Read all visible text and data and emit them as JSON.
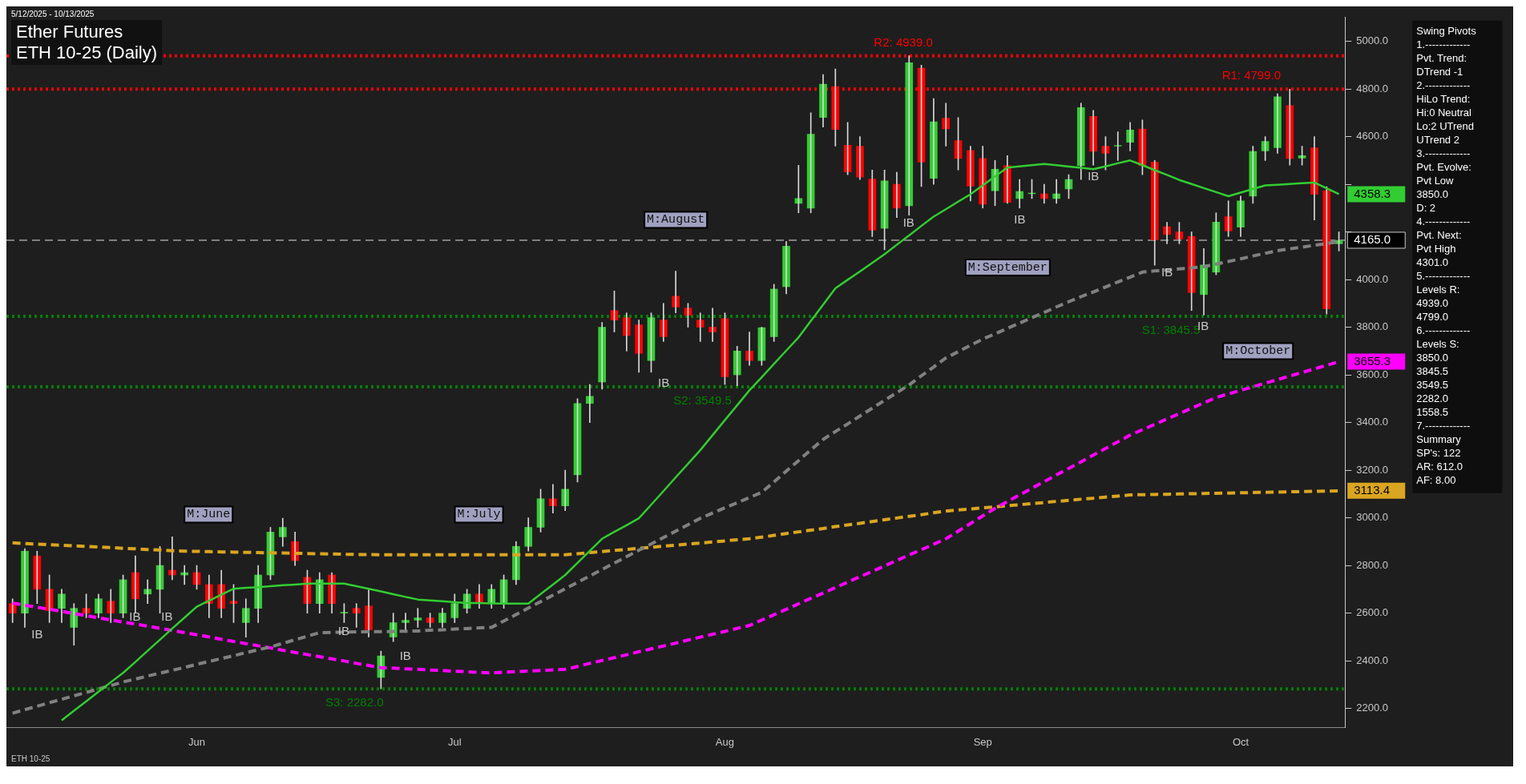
{
  "chart_data": {
    "type": "candlestick",
    "title": "Ether Futures",
    "subtitle": "ETH 10-25 (Daily)",
    "categories": [
      null,
      null,
      null,
      null,
      null,
      null,
      null,
      null,
      null,
      null,
      null,
      null,
      null,
      null,
      null,
      "Jun",
      null,
      null,
      null,
      null,
      null,
      null,
      null,
      null,
      null,
      null,
      null,
      null,
      null,
      null,
      null,
      null,
      null,
      null,
      null,
      null,
      "Jul",
      null,
      null,
      null,
      null,
      null,
      null,
      null,
      null,
      null,
      null,
      null,
      null,
      null,
      null,
      null,
      null,
      null,
      null,
      null,
      null,
      null,
      "Aug",
      null,
      null,
      null,
      null,
      null,
      null,
      null,
      null,
      null,
      null,
      null,
      null,
      null,
      null,
      null,
      null,
      null,
      null,
      null,
      null,
      "Sep",
      null,
      null,
      null,
      null,
      null,
      null,
      null,
      null,
      null,
      null,
      null,
      null,
      null,
      null,
      null,
      null,
      null,
      null,
      null,
      null,
      "Oct",
      null,
      null,
      null,
      null,
      null,
      null,
      null,
      null
    ],
    "ohlc": [
      [
        2640,
        2660,
        2560,
        2600
      ],
      [
        2600,
        2871,
        2540,
        2860
      ],
      [
        2840,
        2860,
        2640,
        2700
      ],
      [
        2700,
        2760,
        2560,
        2610
      ],
      [
        2620,
        2700,
        2560,
        2680
      ],
      [
        2540,
        2640,
        2465,
        2620
      ],
      [
        2620,
        2680,
        2580,
        2600
      ],
      [
        2600,
        2680,
        2580,
        2660
      ],
      [
        2650,
        2700,
        2560,
        2600
      ],
      [
        2600,
        2760,
        2580,
        2740
      ],
      [
        2770,
        2840,
        2600,
        2660
      ],
      [
        2680,
        2740,
        2640,
        2700
      ],
      [
        2700,
        2880,
        2600,
        2800
      ],
      [
        2780,
        2920,
        2740,
        2760
      ],
      [
        2760,
        2800,
        2720,
        2770
      ],
      [
        2770,
        2800,
        2700,
        2720
      ],
      [
        2720,
        2760,
        2580,
        2640
      ],
      [
        2720,
        2780,
        2580,
        2620
      ],
      [
        2650,
        2720,
        2560,
        2640
      ],
      [
        2560,
        2660,
        2499,
        2620
      ],
      [
        2620,
        2800,
        2560,
        2760
      ],
      [
        2760,
        2960,
        2740,
        2940
      ],
      [
        2920,
        2998,
        2880,
        2960
      ],
      [
        2900,
        2940,
        2800,
        2820
      ],
      [
        2750,
        2780,
        2600,
        2640
      ],
      [
        2640,
        2770,
        2600,
        2740
      ],
      [
        2760,
        2770,
        2600,
        2640
      ],
      [
        2600,
        2640,
        2560,
        2600
      ],
      [
        2620,
        2640,
        2540,
        2600
      ],
      [
        2630,
        2700,
        2500,
        2530
      ],
      [
        2330,
        2440,
        2282,
        2420
      ],
      [
        2500,
        2600,
        2480,
        2560
      ],
      [
        2560,
        2600,
        2520,
        2570
      ],
      [
        2570,
        2620,
        2540,
        2580
      ],
      [
        2580,
        2600,
        2540,
        2560
      ],
      [
        2560,
        2620,
        2540,
        2600
      ],
      [
        2580,
        2680,
        2560,
        2640
      ],
      [
        2620,
        2700,
        2600,
        2680
      ],
      [
        2680,
        2720,
        2620,
        2640
      ],
      [
        2640,
        2720,
        2620,
        2700
      ],
      [
        2640,
        2760,
        2620,
        2740
      ],
      [
        2740,
        2900,
        2720,
        2880
      ],
      [
        2880,
        3000,
        2860,
        2960
      ],
      [
        2960,
        3120,
        2940,
        3080
      ],
      [
        3080,
        3140,
        3020,
        3050
      ],
      [
        3050,
        3200,
        3030,
        3120
      ],
      [
        3180,
        3500,
        3150,
        3480
      ],
      [
        3480,
        3560,
        3400,
        3510
      ],
      [
        3570,
        3820,
        3540,
        3800
      ],
      [
        3870,
        3952,
        3780,
        3830
      ],
      [
        3840,
        3860,
        3700,
        3765
      ],
      [
        3810,
        3830,
        3611,
        3690
      ],
      [
        3660,
        3860,
        3611,
        3840
      ],
      [
        3830,
        3900,
        3740,
        3760
      ],
      [
        3930,
        4035,
        3860,
        3885
      ],
      [
        3880,
        3900,
        3800,
        3850
      ],
      [
        3830,
        3860,
        3740,
        3800
      ],
      [
        3800,
        3880,
        3740,
        3780
      ],
      [
        3836,
        3860,
        3560,
        3592
      ],
      [
        3600,
        3720,
        3554,
        3700
      ],
      [
        3700,
        3780,
        3640,
        3660
      ],
      [
        3660,
        3800,
        3640,
        3798
      ],
      [
        3760,
        3980,
        3740,
        3960
      ],
      [
        3970,
        4160,
        3940,
        4140
      ],
      [
        4320,
        4480,
        4280,
        4340
      ],
      [
        4300,
        4700,
        4280,
        4610
      ],
      [
        4680,
        4860,
        4640,
        4820
      ],
      [
        4810,
        4884,
        4560,
        4630
      ],
      [
        4564,
        4660,
        4440,
        4452
      ],
      [
        4560,
        4600,
        4420,
        4430
      ],
      [
        4422,
        4460,
        4180,
        4207
      ],
      [
        4215,
        4460,
        4125,
        4414
      ],
      [
        4400,
        4450,
        4260,
        4300
      ],
      [
        4310,
        4939,
        4270,
        4910
      ],
      [
        4887,
        4900,
        4390,
        4493
      ],
      [
        4425,
        4760,
        4400,
        4662
      ],
      [
        4677,
        4740,
        4560,
        4632
      ],
      [
        4583,
        4680,
        4460,
        4508
      ],
      [
        4542,
        4560,
        4330,
        4392
      ],
      [
        4508,
        4560,
        4300,
        4316
      ],
      [
        4373,
        4500,
        4310,
        4463
      ],
      [
        4478,
        4520,
        4320,
        4324
      ],
      [
        4340,
        4420,
        4300,
        4370
      ],
      [
        4360,
        4420,
        4340,
        4360
      ],
      [
        4360,
        4400,
        4320,
        4340
      ],
      [
        4340,
        4420,
        4320,
        4360
      ],
      [
        4380,
        4440,
        4340,
        4420
      ],
      [
        4478,
        4740,
        4420,
        4722
      ],
      [
        4685,
        4710,
        4480,
        4538
      ],
      [
        4560,
        4600,
        4460,
        4530
      ],
      [
        4560,
        4620,
        4500,
        4560
      ],
      [
        4576,
        4660,
        4540,
        4628
      ],
      [
        4632,
        4670,
        4440,
        4478
      ],
      [
        4493,
        4500,
        4060,
        4166
      ],
      [
        4222,
        4240,
        4150,
        4189
      ],
      [
        4200,
        4240,
        4150,
        4170
      ],
      [
        4181,
        4200,
        3870,
        3945
      ],
      [
        3937,
        4130,
        3851,
        4061
      ],
      [
        4031,
        4280,
        4020,
        4241
      ],
      [
        4264,
        4330,
        4180,
        4204
      ],
      [
        4220,
        4350,
        4180,
        4330
      ],
      [
        4350,
        4560,
        4320,
        4538
      ],
      [
        4540,
        4600,
        4500,
        4580
      ],
      [
        4553,
        4780,
        4530,
        4767
      ],
      [
        4730,
        4799,
        4480,
        4508
      ],
      [
        4510,
        4560,
        4480,
        4520
      ],
      [
        4553,
        4600,
        4250,
        4358
      ],
      [
        4373,
        4390,
        3855,
        3877
      ],
      [
        4150,
        4200,
        4120,
        4165
      ]
    ],
    "series": [
      {
        "type": "line",
        "color": "#32cd32",
        "line_style": "solid",
        "values": [
          null,
          null,
          null,
          null,
          2150,
          2190,
          2230,
          2270,
          2310,
          2349,
          2395,
          2442,
          2488,
          2535,
          2581,
          2627,
          2652,
          2677,
          2702,
          2706,
          2709,
          2713,
          2717,
          2720,
          2724,
          2724,
          2724,
          2724,
          2713,
          2702,
          2691,
          2679,
          2668,
          2657,
          2653,
          2650,
          2646,
          2642,
          2642,
          2641,
          2640,
          2640,
          2640,
          2680,
          2720,
          2760,
          2811,
          2861,
          2912,
          2941,
          2969,
          2998,
          3055,
          3112,
          3170,
          3227,
          3284,
          3347,
          3410,
          3472,
          3535,
          3590,
          3646,
          3702,
          3757,
          3826,
          3894,
          3963,
          3999,
          4034,
          4070,
          4106,
          4146,
          4185,
          4225,
          4264,
          4295,
          4327,
          4358,
          4395,
          4433,
          4470,
          4475,
          4480,
          4485,
          4480,
          4474,
          4469,
          4463,
          4475,
          4488,
          4500,
          4480,
          4459,
          4439,
          4418,
          4401,
          4384,
          4367,
          4350,
          4365,
          4380,
          4395,
          4398,
          4401,
          4404,
          4407,
          4383,
          4358.3
        ],
        "value_labels": [
          null,
          null,
          null,
          null,
          null,
          null,
          null,
          null,
          null,
          null,
          null,
          null,
          null,
          null,
          null,
          null,
          null,
          null,
          null,
          null,
          null,
          null,
          null,
          null,
          null,
          null,
          null,
          null,
          null,
          null,
          null,
          null,
          null,
          null,
          null,
          null,
          null,
          null,
          null,
          null,
          null,
          null,
          null,
          null,
          null,
          null,
          null,
          null,
          null,
          null,
          null,
          null,
          null,
          null,
          null,
          null,
          null,
          null,
          null,
          null,
          null,
          null,
          null,
          null,
          null,
          null,
          null,
          null,
          null,
          null,
          null,
          null,
          null,
          null,
          null,
          null,
          null,
          null,
          null,
          null,
          null,
          null,
          null,
          null,
          null,
          null,
          null,
          null,
          null,
          null,
          null,
          null,
          null,
          null,
          null,
          null,
          null,
          null,
          null,
          null,
          null,
          null,
          null,
          null,
          null,
          null,
          null,
          null,
          "4358.3"
        ]
      },
      {
        "type": "line",
        "color": "#808080",
        "line_style": "dashed",
        "values": [
          2180,
          2195,
          2209,
          2224,
          2238,
          2253,
          2267,
          2282,
          2296,
          2311,
          2323,
          2336,
          2348,
          2360,
          2372,
          2385,
          2397,
          2409,
          2421,
          2434,
          2446,
          2458,
          2473,
          2488,
          2503,
          2518,
          2519,
          2520,
          2521,
          2522,
          2522,
          2523,
          2524,
          2525,
          2528,
          2530,
          2533,
          2535,
          2538,
          2540,
          2567,
          2594,
          2621,
          2648,
          2675,
          2702,
          2729,
          2756,
          2783,
          2810,
          2837,
          2864,
          2890,
          2917,
          2944,
          2971,
          2998,
          3020,
          3042,
          3063,
          3085,
          3107,
          3151,
          3196,
          3240,
          3285,
          3329,
          3362,
          3394,
          3427,
          3460,
          3493,
          3525,
          3558,
          3596,
          3633,
          3671,
          3697,
          3724,
          3750,
          3772,
          3795,
          3817,
          3840,
          3862,
          3885,
          3907,
          3928,
          3948,
          3969,
          3990,
          4010,
          4031,
          4036,
          4040,
          4045,
          4049,
          4054,
          4065,
          4076,
          4087,
          4099,
          4110,
          4121,
          4129,
          4136,
          4144,
          4151,
          4159
        ]
      },
      {
        "type": "line",
        "color": "#ff00ff",
        "line_style": "dashed",
        "values": [
          2642,
          2633,
          2624,
          2616,
          2607,
          2598,
          2589,
          2580,
          2571,
          2562,
          2554,
          2545,
          2536,
          2527,
          2518,
          2509,
          2500,
          2490,
          2481,
          2472,
          2463,
          2454,
          2444,
          2435,
          2426,
          2417,
          2408,
          2399,
          2389,
          2380,
          2371,
          2369,
          2366,
          2364,
          2361,
          2359,
          2356,
          2354,
          2351,
          2349,
          2352,
          2354,
          2357,
          2359,
          2362,
          2364,
          2376,
          2389,
          2401,
          2413,
          2425,
          2438,
          2450,
          2462,
          2474,
          2487,
          2499,
          2511,
          2523,
          2536,
          2548,
          2571,
          2593,
          2616,
          2639,
          2662,
          2684,
          2707,
          2730,
          2753,
          2775,
          2798,
          2821,
          2844,
          2866,
          2889,
          2912,
          2944,
          2976,
          3008,
          3040,
          3068,
          3096,
          3124,
          3152,
          3180,
          3207,
          3235,
          3263,
          3291,
          3319,
          3347,
          3370,
          3392,
          3415,
          3437,
          3460,
          3482,
          3505,
          3520,
          3535,
          3550,
          3565,
          3580,
          3595,
          3610,
          3625,
          3640,
          3655.3
        ],
        "value_labels": [
          null,
          null,
          null,
          null,
          null,
          null,
          null,
          null,
          null,
          null,
          null,
          null,
          null,
          null,
          null,
          null,
          null,
          null,
          null,
          null,
          null,
          null,
          null,
          null,
          null,
          null,
          null,
          null,
          null,
          null,
          null,
          null,
          null,
          null,
          null,
          null,
          null,
          null,
          null,
          null,
          null,
          null,
          null,
          null,
          null,
          null,
          null,
          null,
          null,
          null,
          null,
          null,
          null,
          null,
          null,
          null,
          null,
          null,
          null,
          null,
          null,
          null,
          null,
          null,
          null,
          null,
          null,
          null,
          null,
          null,
          null,
          null,
          null,
          null,
          null,
          null,
          null,
          null,
          null,
          null,
          null,
          null,
          null,
          null,
          null,
          null,
          null,
          null,
          null,
          null,
          null,
          null,
          null,
          null,
          null,
          null,
          null,
          null,
          null,
          null,
          null,
          null,
          null,
          null,
          null,
          null,
          null,
          null,
          "3655.3"
        ]
      },
      {
        "type": "line",
        "color": "#daa520",
        "line_style": "dashed",
        "values": [
          2895,
          2892,
          2890,
          2887,
          2885,
          2882,
          2880,
          2877,
          2875,
          2872,
          2870,
          2867,
          2865,
          2862,
          2860,
          2859,
          2858,
          2857,
          2856,
          2855,
          2854,
          2853,
          2852,
          2851,
          2850,
          2849,
          2848,
          2847,
          2846,
          2846,
          2845,
          2845,
          2845,
          2845,
          2845,
          2845,
          2845,
          2845,
          2845,
          2845,
          2845,
          2845,
          2845,
          2845,
          2845,
          2845,
          2849,
          2854,
          2858,
          2863,
          2867,
          2872,
          2876,
          2881,
          2885,
          2890,
          2894,
          2899,
          2903,
          2908,
          2912,
          2919,
          2926,
          2934,
          2941,
          2948,
          2955,
          2963,
          2970,
          2977,
          2984,
          2992,
          2999,
          3006,
          3013,
          3021,
          3028,
          3033,
          3037,
          3042,
          3046,
          3051,
          3055,
          3060,
          3064,
          3069,
          3073,
          3078,
          3082,
          3087,
          3091,
          3096,
          3097,
          3098,
          3099,
          3100,
          3101,
          3102,
          3103,
          3104,
          3105,
          3106,
          3107,
          3108,
          3109,
          3110,
          3111,
          3112,
          3113.4
        ],
        "value_labels": [
          null,
          null,
          null,
          null,
          null,
          null,
          null,
          null,
          null,
          null,
          null,
          null,
          null,
          null,
          null,
          null,
          null,
          null,
          null,
          null,
          null,
          null,
          null,
          null,
          null,
          null,
          null,
          null,
          null,
          null,
          null,
          null,
          null,
          null,
          null,
          null,
          null,
          null,
          null,
          null,
          null,
          null,
          null,
          null,
          null,
          null,
          null,
          null,
          null,
          null,
          null,
          null,
          null,
          null,
          null,
          null,
          null,
          null,
          null,
          null,
          null,
          null,
          null,
          null,
          null,
          null,
          null,
          null,
          null,
          null,
          null,
          null,
          null,
          null,
          null,
          null,
          null,
          null,
          null,
          null,
          null,
          null,
          null,
          null,
          null,
          null,
          null,
          null,
          null,
          null,
          null,
          null,
          null,
          null,
          null,
          null,
          null,
          null,
          null,
          null,
          null,
          null,
          null,
          null,
          null,
          null,
          null,
          null,
          "3113.4"
        ]
      }
    ],
    "marker": "none",
    "ref_lines": [
      {
        "axis": "y",
        "value": 4939,
        "label": "R2: 4939.0",
        "color": "#ff0000",
        "line_style": "dotted"
      },
      {
        "axis": "y",
        "value": 4799,
        "label": "R1: 4799.0",
        "color": "#ff0000",
        "line_style": "dotted"
      },
      {
        "axis": "y",
        "value": 3845.5,
        "label": "S1: 3845.5",
        "color": "#008000",
        "line_style": "dotted"
      },
      {
        "axis": "y",
        "value": 3549.5,
        "label": "S2: 3549.5",
        "color": "#008000",
        "line_style": "dotted"
      },
      {
        "axis": "y",
        "value": 2282,
        "label": "S3: 2282.0",
        "color": "#008000",
        "line_style": "dotted"
      },
      {
        "axis": "y",
        "value": 4165,
        "label": "4165.0",
        "color": "#a0a0a0",
        "line_style": "dashed"
      }
    ],
    "annotations": [
      "5/12/2025 - 10/13/2025",
      "Swing Pivots",
      "1.-------------",
      "Pvt. Trend:",
      "DTrend -1",
      "2.-------------",
      "HiLo Trend:",
      "Hi:0 Neutral",
      "Lo:2 UTrend",
      "UTrend 2",
      "3.-------------",
      "Pvt. Evolve:",
      "Pvt Low",
      "3850.0",
      "D: 2",
      "4.-------------",
      "Pvt. Next:",
      "Pvt High",
      "4301.0",
      "5.-------------",
      "Levels R:",
      "4939.0",
      "4799.0",
      "6.-------------",
      "Levels S:",
      "3850.0",
      "3845.5",
      "3549.5",
      "2282.0",
      "1558.5",
      "7.-------------",
      "Summary",
      "SP's: 122",
      "AR: 612.0",
      "AF: 8.00",
      "M:June",
      "M:July",
      "M:August",
      "M:September",
      "M:October",
      "IB",
      "IB",
      "IB",
      "IB",
      "IB",
      "IB",
      "IB",
      "IB",
      "IB",
      "IB",
      "IB",
      "ETH 10-25"
    ],
    "ylim": [
      2120,
      5100
    ],
    "yticks": [
      {
        "value": 2200,
        "label": "2200.0"
      },
      {
        "value": 2400,
        "label": "2400.0"
      },
      {
        "value": 2600,
        "label": "2600.0"
      },
      {
        "value": 2800,
        "label": "2800.0"
      },
      {
        "value": 3000,
        "label": "3000.0"
      },
      {
        "value": 3200,
        "label": "3200.0"
      },
      {
        "value": 3400,
        "label": "3400.0"
      },
      {
        "value": 3600,
        "label": "3600.0"
      },
      {
        "value": 3800,
        "label": "3800.0"
      },
      {
        "value": 4000,
        "label": "4000.0"
      },
      {
        "value": 4200,
        "label": null
      },
      {
        "value": 4400,
        "label": null
      },
      {
        "value": 4600,
        "label": "4600.0"
      },
      {
        "value": 4800,
        "label": "4800.0"
      },
      {
        "value": 5000,
        "label": "5000.0"
      }
    ]
  }
}
